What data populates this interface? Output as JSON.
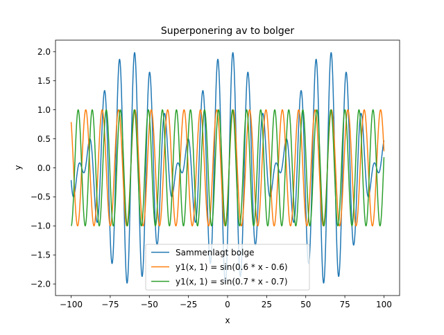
{
  "chart_data": {
    "type": "line",
    "title": "Superponering av to bolger",
    "xlabel": "x",
    "ylabel": "y",
    "xlim": [
      -110,
      110
    ],
    "ylim": [
      -2.2,
      2.2
    ],
    "x_ticks": [
      -100,
      -75,
      -50,
      -25,
      0,
      25,
      50,
      75,
      100
    ],
    "x_tick_labels": [
      "−100",
      "−75",
      "−50",
      "−25",
      "0",
      "25",
      "50",
      "75",
      "100"
    ],
    "y_ticks": [
      -2.0,
      -1.5,
      -1.0,
      -0.5,
      0.0,
      0.5,
      1.0,
      1.5,
      2.0
    ],
    "y_tick_labels": [
      "−2.0",
      "−1.5",
      "−1.0",
      "−0.5",
      "0.0",
      "0.5",
      "1.0",
      "1.5",
      "2.0"
    ],
    "x_range": [
      -100,
      100
    ],
    "grid": false,
    "legend_position": "lower center",
    "series": [
      {
        "name": "Sammenlagt bolge",
        "color": "#1f77b4",
        "formula": "sin(0.6*x - 0.6) + sin(0.7*x - 0.7)"
      },
      {
        "name": "y1(x, 1) = sin(0.6 * x - 0.6)",
        "color": "#ff7f0e",
        "formula": "sin(0.6*x - 0.6)"
      },
      {
        "name": "y1(x, 1) = sin(0.7 * x - 0.7)",
        "color": "#2ca02c",
        "formula": "sin(0.7*x - 0.7)"
      }
    ]
  }
}
